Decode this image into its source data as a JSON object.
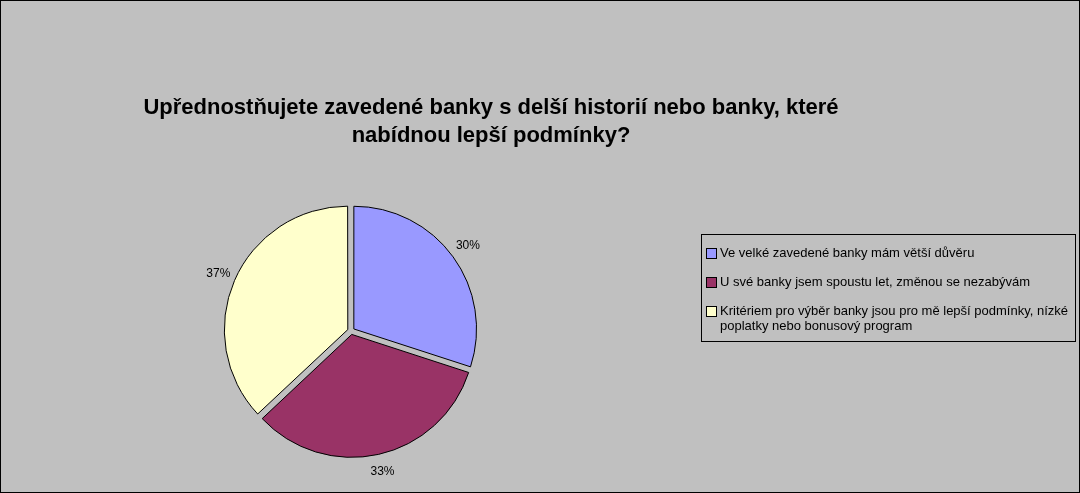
{
  "chart_data": {
    "type": "pie",
    "title": "Upřednostňujete zavedené banky s delší historií nebo banky, které nabídnou lepší podmínky?",
    "categories": [
      "Ve velké zavedené banky mám větší důvěru",
      "U své banky jsem spoustu let, změnou se nezabývám",
      "Kritériem pro výběr banky jsou pro mě lepší podmínky, nízké poplatky nebo bonusový program"
    ],
    "values": [
      30,
      33,
      37
    ],
    "colors": [
      "#9999ff",
      "#993366",
      "#ffffcc"
    ],
    "value_labels": [
      "30%",
      "33%",
      "37%"
    ],
    "legend": "right"
  }
}
